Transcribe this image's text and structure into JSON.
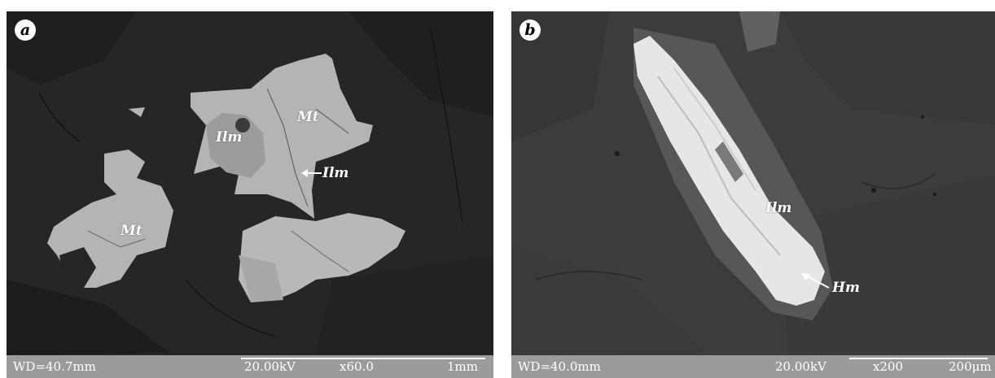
{
  "panels": [
    {
      "badge": "a",
      "labels": {
        "mt_upper": "Mt",
        "mt_lower": "Mt",
        "ilm_left": "Ilm",
        "ilm_arrow": "Ilm"
      },
      "infobar": {
        "wd": "WD=40.7mm",
        "kv": "20.00kV",
        "mag": "x60.0",
        "scale": "1mm"
      }
    },
    {
      "badge": "b",
      "labels": {
        "ilm": "Ilm",
        "hm_arrow": "Hm"
      },
      "infobar": {
        "wd": "WD=40.0mm",
        "kv": "20.00kV",
        "mag": "x200",
        "scale": "200μm"
      }
    }
  ],
  "colors": {
    "background_a": "#262626",
    "background_b": "#3c3c3c",
    "magnetite": "#b4b4b4",
    "ilmenite": "#9c9c9c",
    "bright_grain": "#e6e6e6",
    "infobar": "#9b9b9b"
  }
}
